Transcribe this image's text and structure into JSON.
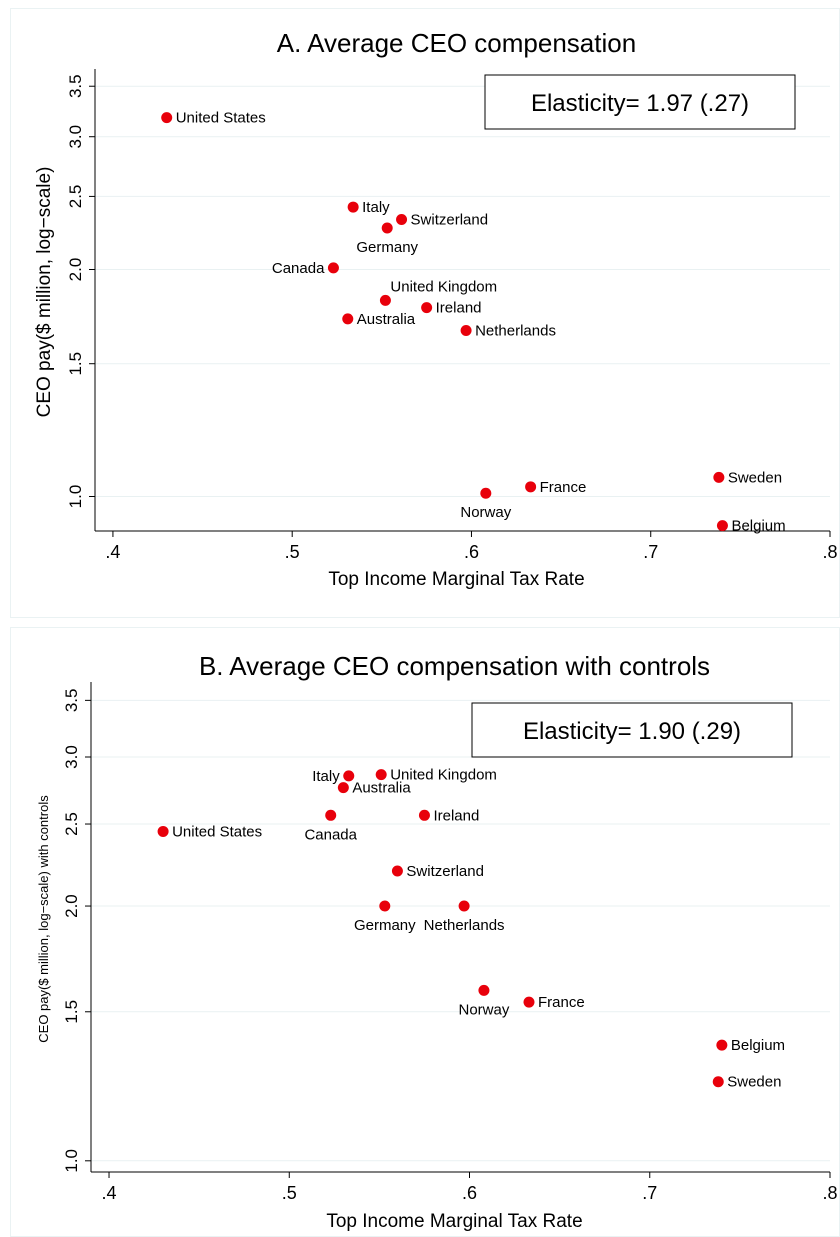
{
  "chart_data": [
    {
      "type": "scatter",
      "title": "A. Average CEO compensation",
      "xlabel": "Top Income Marginal Tax Rate",
      "ylabel": "CEO pay($ million, log−scale)",
      "xlim": [
        0.39,
        0.8
      ],
      "ylim": [
        0.9,
        3.6
      ],
      "y_scale": "log",
      "x_ticks": [
        0.4,
        0.5,
        0.6,
        0.7,
        0.8
      ],
      "x_tick_labels": [
        ".4",
        ".5",
        ".6",
        ".7",
        ".8"
      ],
      "y_ticks": [
        1.0,
        1.5,
        2.0,
        2.5,
        3.0,
        3.5
      ],
      "y_tick_labels": [
        "1.0",
        "1.5",
        "2.0",
        "2.5",
        "3.0",
        "3.5"
      ],
      "grid": true,
      "annotation": "Elasticity= 1.97 (.27)",
      "marker_color": "#e8000b",
      "points": [
        {
          "label": "United States",
          "x": 0.43,
          "y": 3.18,
          "pos": "right"
        },
        {
          "label": "Italy",
          "x": 0.534,
          "y": 2.42,
          "pos": "right"
        },
        {
          "label": "Switzerland",
          "x": 0.561,
          "y": 2.33,
          "pos": "right"
        },
        {
          "label": "Germany",
          "x": 0.553,
          "y": 2.27,
          "pos": "below"
        },
        {
          "label": "Canada",
          "x": 0.523,
          "y": 2.01,
          "pos": "left"
        },
        {
          "label": "United Kingdom",
          "x": 0.552,
          "y": 1.82,
          "pos": "above-right"
        },
        {
          "label": "Ireland",
          "x": 0.575,
          "y": 1.78,
          "pos": "right"
        },
        {
          "label": "Australia",
          "x": 0.531,
          "y": 1.72,
          "pos": "right"
        },
        {
          "label": "Netherlands",
          "x": 0.597,
          "y": 1.66,
          "pos": "right"
        },
        {
          "label": "Sweden",
          "x": 0.738,
          "y": 1.06,
          "pos": "right"
        },
        {
          "label": "France",
          "x": 0.633,
          "y": 1.03,
          "pos": "right"
        },
        {
          "label": "Norway",
          "x": 0.608,
          "y": 1.01,
          "pos": "below"
        },
        {
          "label": "Belgium",
          "x": 0.74,
          "y": 0.915,
          "pos": "right"
        }
      ]
    },
    {
      "type": "scatter",
      "title": "B. Average CEO compensation with controls",
      "xlabel": "Top Income Marginal Tax Rate",
      "ylabel": "CEO pay($ million, log−scale) with controls",
      "xlim": [
        0.39,
        0.8
      ],
      "ylim": [
        0.97,
        3.6
      ],
      "y_scale": "log",
      "x_ticks": [
        0.4,
        0.5,
        0.6,
        0.7,
        0.8
      ],
      "x_tick_labels": [
        ".4",
        ".5",
        ".6",
        ".7",
        ".8"
      ],
      "y_ticks": [
        1.0,
        1.5,
        2.0,
        2.5,
        3.0,
        3.5
      ],
      "y_tick_labels": [
        "1.0",
        "1.5",
        "2.0",
        "2.5",
        "3.0",
        "3.5"
      ],
      "grid": true,
      "annotation": "Elasticity= 1.90 (.29)",
      "marker_color": "#e8000b",
      "points": [
        {
          "label": "Italy",
          "x": 0.533,
          "y": 2.85,
          "pos": "left"
        },
        {
          "label": "United Kingdom",
          "x": 0.551,
          "y": 2.86,
          "pos": "right"
        },
        {
          "label": "Australia",
          "x": 0.53,
          "y": 2.76,
          "pos": "right"
        },
        {
          "label": "Canada",
          "x": 0.523,
          "y": 2.56,
          "pos": "below"
        },
        {
          "label": "Ireland",
          "x": 0.575,
          "y": 2.56,
          "pos": "right"
        },
        {
          "label": "United States",
          "x": 0.43,
          "y": 2.45,
          "pos": "right"
        },
        {
          "label": "Switzerland",
          "x": 0.56,
          "y": 2.2,
          "pos": "right"
        },
        {
          "label": "Germany",
          "x": 0.553,
          "y": 2.0,
          "pos": "below"
        },
        {
          "label": "Netherlands",
          "x": 0.597,
          "y": 2.0,
          "pos": "below"
        },
        {
          "label": "Norway",
          "x": 0.608,
          "y": 1.59,
          "pos": "below"
        },
        {
          "label": "France",
          "x": 0.633,
          "y": 1.54,
          "pos": "right"
        },
        {
          "label": "Belgium",
          "x": 0.74,
          "y": 1.37,
          "pos": "right"
        },
        {
          "label": "Sweden",
          "x": 0.738,
          "y": 1.24,
          "pos": "right"
        }
      ]
    }
  ]
}
